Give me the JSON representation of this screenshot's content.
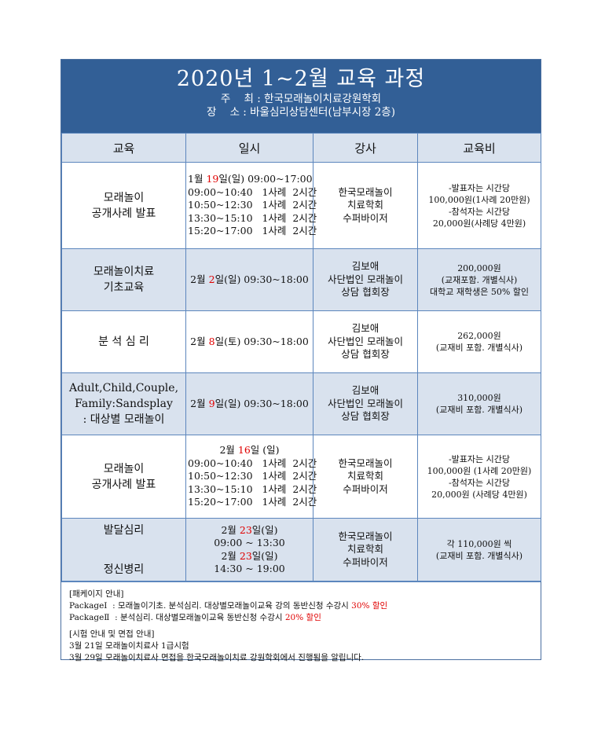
{
  "header": {
    "title": "2020년 1~2월 교육 과정",
    "host": "주    최 : 한국모래놀이치료강원학회",
    "venue": "장    소 : 바울심리상담센터(남부시장 2층)"
  },
  "columns": [
    "교육",
    "일시",
    "강사",
    "교육비"
  ],
  "rows": [
    {
      "course": [
        "모래놀이",
        "공개사례 발표"
      ],
      "schedule": [
        {
          "pre": "1월 ",
          "red": "19",
          "post": "일(일) 09:00~17:00"
        },
        {
          "pre": "09:00~10:40   1사례  2시간"
        },
        {
          "pre": "10:50~12:30   1사례  2시간"
        },
        {
          "pre": "13:30~15:10   1사례  2시간"
        },
        {
          "pre": "15:20~17:00   1사례  2시간"
        }
      ],
      "instructor": [
        "한국모래놀이",
        "치료학회",
        "수퍼바이저"
      ],
      "fee": [
        "-발표자는 시간당",
        "100,000원(1사례 20만원)",
        "-참석자는 시간당",
        "20,000원(사례당 4만원)"
      ]
    },
    {
      "course": [
        "모래놀이치료",
        "기초교육"
      ],
      "schedule": [
        {
          "pre": "2월 ",
          "red": "2",
          "post": "일(일) 09:30~18:00"
        }
      ],
      "instructor": [
        "김보애",
        "사단법인 모래놀이",
        "상담 협회장"
      ],
      "fee": [
        "200,000원",
        "(교재포함. 개별식사)",
        "대학교 재학생은 50% 할인"
      ]
    },
    {
      "course": [
        "분 석 심 리"
      ],
      "schedule": [
        {
          "pre": "2월 ",
          "red": "8",
          "post": "일(토) 09:30~18:00"
        }
      ],
      "instructor": [
        "김보애",
        "사단법인 모래놀이",
        "상담 협회장"
      ],
      "fee": [
        "262,000원",
        "(교재비 포함. 개별식사)"
      ]
    },
    {
      "course": [
        "Adult,Child,Couple,",
        "Family:Sandsplay",
        ": 대상별 모래놀이"
      ],
      "schedule": [
        {
          "pre": "2월 ",
          "red": "9",
          "post": "일(일) 09:30~18:00"
        }
      ],
      "instructor": [
        "김보애",
        "사단법인 모래놀이",
        "상담 협회장"
      ],
      "fee": [
        "310,000원",
        "(교재비 포함. 개별식사)"
      ]
    },
    {
      "course": [
        "모래놀이",
        "공개사례 발표"
      ],
      "schedule": [
        {
          "pre": "2월 ",
          "red": "16",
          "post": "일 (일)"
        },
        {
          "pre": "09:00~10:40   1사례  2시간"
        },
        {
          "pre": "10:50~12:30   1사례  2시간"
        },
        {
          "pre": "13:30~15:10   1사례  2시간"
        },
        {
          "pre": "15:20~17:00   1사례  2시간"
        }
      ],
      "instructor": [
        "한국모래놀이",
        "치료학회",
        "수퍼바이저"
      ],
      "fee": [
        "-발표자는 시간당",
        "100,000원 (1사례 20만원)",
        "-참석자는 시간당",
        "20,000원 (사례당 4만원)"
      ]
    },
    {
      "course": [
        "발달심리",
        "정신병리"
      ],
      "schedule": [
        {
          "pre": "2월 ",
          "red": "23",
          "post": "일(일)"
        },
        {
          "pre": "09:00 ~ 13:30"
        },
        {
          "pre": "2월 ",
          "red": "23",
          "post": "일(일)"
        },
        {
          "pre": "14:30 ~ 19:00"
        }
      ],
      "instructor": [
        "한국모래놀이",
        "치료학회",
        "수퍼바이저"
      ],
      "fee": [
        "각 110,000원 씩",
        "(교재비 포함. 개별식사)"
      ]
    }
  ],
  "notes": {
    "package_heading": "[패케이지 안내]",
    "package1": {
      "text": "PackageⅠ  : 모래놀이기초. 분석심리. 대상별모래놀이교육 강의 동반신청 수강시 ",
      "highlight": "30% 할인"
    },
    "package2": {
      "text": "PackageⅡ  : 분석심리. 대상별모래놀이교육 동반신청 수강시 ",
      "highlight": "20% 할인"
    },
    "exam_heading": "[시험 안내 및 면접 안내]",
    "exam1": "3월 21일 모래놀이치료사 1급시험",
    "exam2": "3월 29일 모래놀이치료사 면접을 한국모래놀이치료 강원학회에서 진행됨을 알립니다."
  },
  "colors": {
    "header_bg": "#325f96",
    "shade": "#d9e2ee",
    "highlight": "#e00000"
  }
}
